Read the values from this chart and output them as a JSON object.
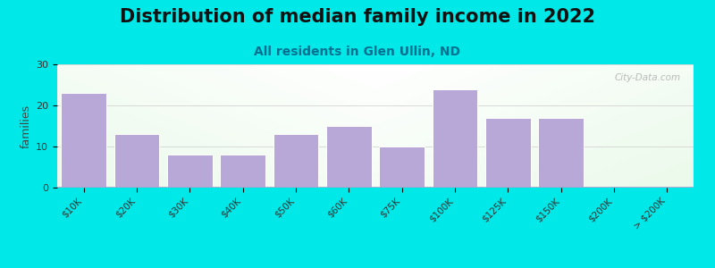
{
  "title": "Distribution of median family income in 2022",
  "subtitle": "All residents in Glen Ullin, ND",
  "categories": [
    "$10K",
    "$20K",
    "$30K",
    "$40K",
    "$50K",
    "$60K",
    "$75K",
    "$100K",
    "$125K",
    "$150K",
    "$200K",
    "> $200K"
  ],
  "bar_values": [
    23,
    13,
    8,
    8,
    13,
    15,
    10,
    24,
    17,
    17,
    0,
    0
  ],
  "bar_color": "#b8a8d8",
  "background_color": "#00e8e8",
  "ylabel": "families",
  "ylim": [
    0,
    30
  ],
  "yticks": [
    0,
    10,
    20,
    30
  ],
  "title_fontsize": 15,
  "subtitle_fontsize": 10,
  "subtitle_color": "#007090",
  "watermark": "City-Data.com"
}
